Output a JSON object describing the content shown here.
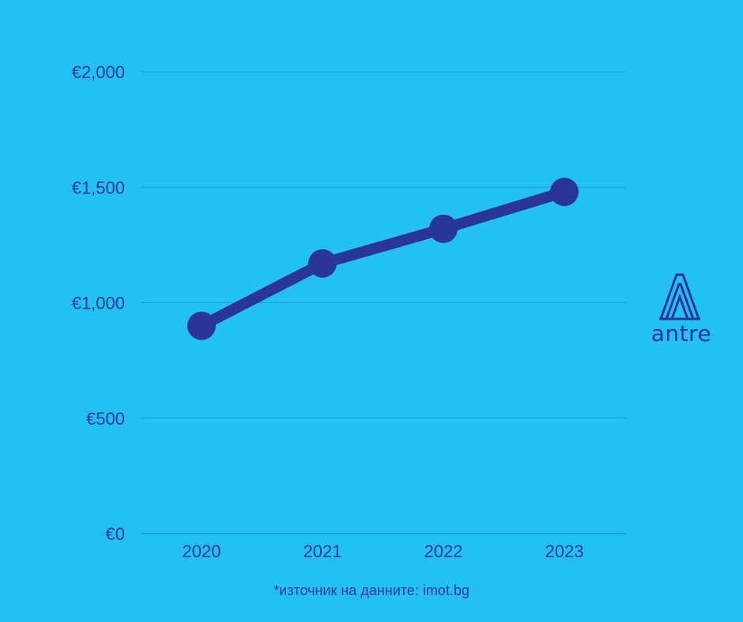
{
  "chart_data": {
    "type": "line",
    "categories": [
      "2020",
      "2021",
      "2022",
      "2023"
    ],
    "series": [
      {
        "values": [
          900,
          1170,
          1320,
          1480
        ]
      }
    ],
    "ylim": [
      0,
      2000
    ],
    "y_ticks": [
      0,
      500,
      1000,
      1500,
      2000
    ],
    "y_tick_labels": [
      "€0",
      "€500",
      "€1,000",
      "€1,500",
      "€2,000"
    ],
    "grid": true,
    "legend": "none",
    "colors": {
      "background": "#23c1f3",
      "series": "#2b3595",
      "text": "#2f3a94"
    }
  },
  "logo": {
    "text": "antre",
    "icon": "antre-logo-icon"
  },
  "footer": {
    "source_note": "*източник на данните: imot.bg"
  }
}
